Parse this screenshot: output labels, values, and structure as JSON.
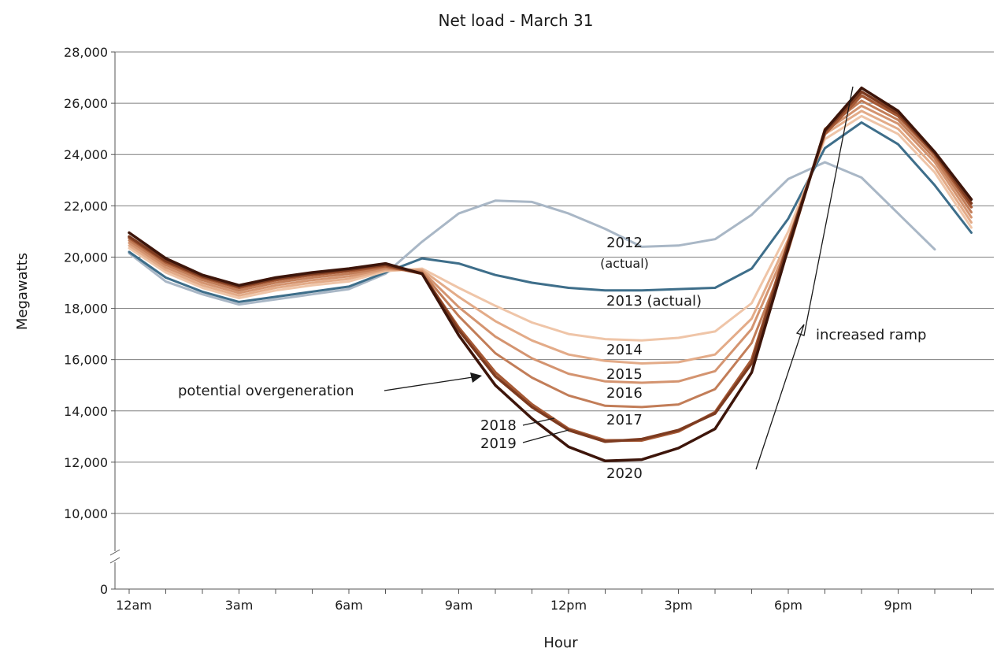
{
  "chart_data": {
    "type": "line",
    "title": "Net load - March 31",
    "xlabel": "Hour",
    "ylabel": "Megawatts",
    "ylim": [
      10000,
      28000
    ],
    "y_ticks": [
      {
        "value": 28000,
        "label": "28,000"
      },
      {
        "value": 26000,
        "label": "26,000"
      },
      {
        "value": 24000,
        "label": "24,000"
      },
      {
        "value": 22000,
        "label": "22,000"
      },
      {
        "value": 20000,
        "label": "20,000"
      },
      {
        "value": 18000,
        "label": "18,000"
      },
      {
        "value": 16000,
        "label": "16,000"
      },
      {
        "value": 14000,
        "label": "14,000"
      },
      {
        "value": 12000,
        "label": "12,000"
      },
      {
        "value": 10000,
        "label": "10,000"
      }
    ],
    "y_zero_label": "0",
    "axis_break": true,
    "grid": true,
    "x": [
      0,
      1,
      2,
      3,
      4,
      5,
      6,
      7,
      8,
      9,
      10,
      11,
      12,
      13,
      14,
      15,
      16,
      17,
      18,
      19,
      20,
      21,
      22,
      23
    ],
    "x_ticks": [
      {
        "value": 0,
        "label": "12am"
      },
      {
        "value": 3,
        "label": "3am"
      },
      {
        "value": 6,
        "label": "6am"
      },
      {
        "value": 9,
        "label": "9am"
      },
      {
        "value": 12,
        "label": "12pm"
      },
      {
        "value": 15,
        "label": "3pm"
      },
      {
        "value": 18,
        "label": "6pm"
      },
      {
        "value": 21,
        "label": "9pm"
      }
    ],
    "series": [
      {
        "name": "2012 (actual)",
        "color": "#a9b7c6",
        "width": 3,
        "values": [
          20150,
          19050,
          18550,
          18150,
          18350,
          18550,
          18750,
          19350,
          20600,
          21700,
          22200,
          22150,
          21700,
          21100,
          20400,
          20450,
          20700,
          21650,
          23050,
          23700,
          23100,
          21700,
          20300,
          null
        ]
      },
      {
        "name": "2013 (actual)",
        "color": "#3e6e8a",
        "width": 3,
        "values": [
          20200,
          19200,
          18650,
          18250,
          18450,
          18650,
          18850,
          19400,
          19950,
          19750,
          19300,
          19000,
          18800,
          18700,
          18700,
          18750,
          18800,
          19550,
          21500,
          24250,
          25250,
          24400,
          22800,
          20950
        ]
      },
      {
        "name": "2014",
        "color": "#efc5a8",
        "width": 3,
        "values": [
          20350,
          19400,
          18800,
          18400,
          18700,
          18900,
          19050,
          19450,
          19550,
          18800,
          18100,
          17450,
          17000,
          16800,
          16750,
          16850,
          17100,
          18200,
          21000,
          24600,
          25500,
          24800,
          23300,
          21150
        ]
      },
      {
        "name": "2015",
        "color": "#e3ab88",
        "width": 3,
        "values": [
          20450,
          19500,
          18900,
          18500,
          18800,
          19000,
          19150,
          19500,
          19500,
          18450,
          17500,
          16750,
          16200,
          15950,
          15850,
          15900,
          16200,
          17600,
          20700,
          24800,
          25700,
          25000,
          23500,
          21350
        ]
      },
      {
        "name": "2016",
        "color": "#d49470",
        "width": 3,
        "values": [
          20550,
          19600,
          19000,
          18600,
          18900,
          19100,
          19250,
          19550,
          19450,
          18050,
          16900,
          16050,
          15450,
          15150,
          15100,
          15150,
          15550,
          17200,
          20500,
          24900,
          25900,
          25200,
          23700,
          21550
        ]
      },
      {
        "name": "2017",
        "color": "#c27d58",
        "width": 3,
        "values": [
          20650,
          19700,
          19100,
          18700,
          19000,
          19200,
          19350,
          19600,
          19400,
          17700,
          16250,
          15300,
          14600,
          14200,
          14150,
          14250,
          14850,
          16650,
          20250,
          25000,
          26100,
          25350,
          23850,
          21750
        ]
      },
      {
        "name": "2018",
        "color": "#a65a36",
        "width": 3.5,
        "values": [
          20750,
          19800,
          19200,
          18800,
          19100,
          19300,
          19450,
          19650,
          19350,
          17250,
          15500,
          14250,
          13300,
          12850,
          12850,
          13200,
          13950,
          16000,
          20600,
          24800,
          26300,
          25500,
          24000,
          21950
        ]
      },
      {
        "name": "2019",
        "color": "#7d3b20",
        "width": 3.5,
        "values": [
          20800,
          19850,
          19250,
          18850,
          19150,
          19350,
          19500,
          19700,
          19350,
          17150,
          15350,
          14150,
          13250,
          12800,
          12900,
          13250,
          13900,
          15850,
          20500,
          24900,
          26450,
          25600,
          24050,
          22100
        ]
      },
      {
        "name": "2020",
        "color": "#3d150a",
        "width": 3.5,
        "values": [
          20950,
          19950,
          19300,
          18900,
          19200,
          19400,
          19550,
          19750,
          19350,
          16950,
          15000,
          13700,
          12600,
          12050,
          12100,
          12550,
          13300,
          15500,
          20350,
          24950,
          26600,
          25700,
          24100,
          22250
        ]
      }
    ],
    "annotations": {
      "label_2012_line1": "2012",
      "label_2012_line2": "(actual)",
      "label_2013": "2013 (actual)",
      "label_2014": "2014",
      "label_2015": "2015",
      "label_2016": "2016",
      "label_2017": "2017",
      "label_2018": "2018",
      "label_2019": "2019",
      "label_2020": "2020",
      "overgeneration": "potential overgeneration",
      "ramp": "increased ramp"
    }
  }
}
